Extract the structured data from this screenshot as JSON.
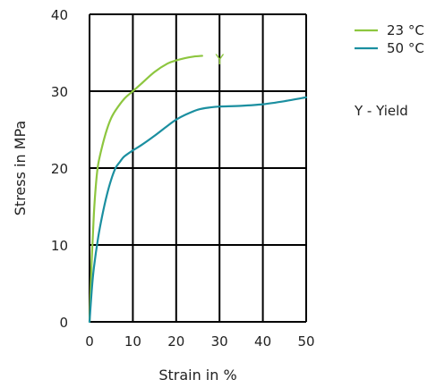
{
  "chart_data": {
    "type": "line",
    "xlabel": "Strain in %",
    "ylabel": "Stress in MPa",
    "xlim": [
      0,
      50
    ],
    "ylim": [
      0,
      40
    ],
    "xticks": [
      0,
      10,
      20,
      30,
      40,
      50
    ],
    "yticks": [
      0,
      10,
      20,
      30,
      40
    ],
    "grid": true,
    "legend_position": "top-right",
    "series": [
      {
        "name": "23 °C",
        "color": "#8dc63f",
        "x": [
          0,
          0.5,
          1,
          1.5,
          2,
          3,
          4,
          5,
          6,
          8,
          10,
          12,
          15,
          18,
          20,
          22,
          24,
          26
        ],
        "y": [
          0,
          8,
          14,
          18,
          20.5,
          23,
          25,
          26.5,
          27.5,
          29,
          30,
          31,
          32.5,
          33.6,
          34,
          34.3,
          34.5,
          34.6
        ]
      },
      {
        "name": "50 °C",
        "color": "#1b8fa0",
        "x": [
          0,
          0.5,
          1,
          2,
          3,
          4,
          5,
          6,
          7,
          8,
          10,
          12,
          15,
          18,
          20,
          22,
          25,
          28,
          30,
          35,
          40,
          45,
          50
        ],
        "y": [
          0,
          4,
          7,
          11,
          14,
          16.5,
          18.5,
          20,
          20.8,
          21.5,
          22.3,
          23,
          24.2,
          25.5,
          26.3,
          26.9,
          27.6,
          27.9,
          28,
          28.1,
          28.3,
          28.7,
          29.2
        ]
      }
    ],
    "annotations": [
      {
        "text": "Y",
        "x": 28,
        "y": 34.4,
        "color": "#8dc63f"
      }
    ],
    "legend_note": "Y - Yield"
  }
}
